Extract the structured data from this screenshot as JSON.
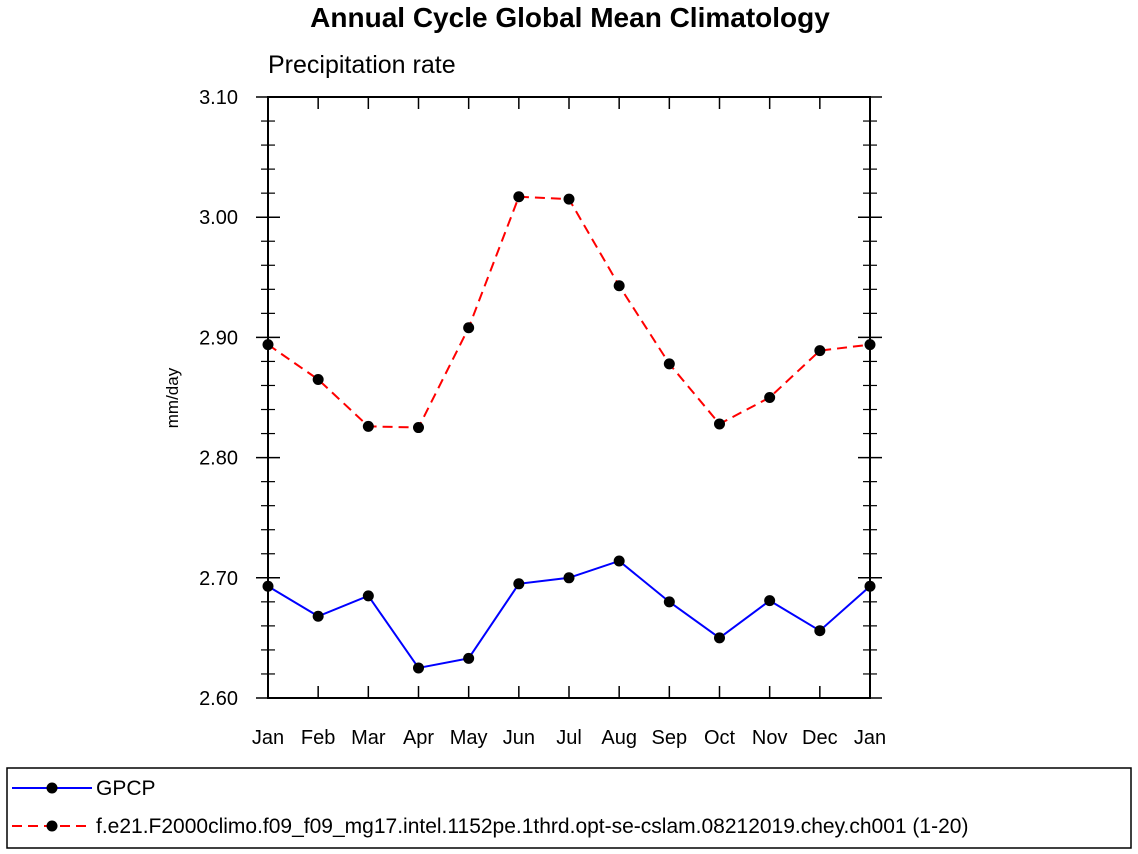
{
  "chart_data": {
    "type": "line",
    "title": "Annual Cycle Global Mean Climatology",
    "subtitle": "Precipitation rate",
    "ylabel": "mm/day",
    "ylim": [
      2.6,
      3.1
    ],
    "yticks": [
      "2.60",
      "2.70",
      "2.80",
      "2.90",
      "3.00",
      "3.10"
    ],
    "categories": [
      "Jan",
      "Feb",
      "Mar",
      "Apr",
      "May",
      "Jun",
      "Jul",
      "Aug",
      "Sep",
      "Oct",
      "Nov",
      "Dec",
      "Jan"
    ],
    "grid": false,
    "legend_placement": "bottom",
    "series": [
      {
        "name": "GPCP",
        "color": "#0000ff",
        "style": "solid",
        "marker": "filled-circle",
        "values": [
          2.693,
          2.668,
          2.685,
          2.625,
          2.633,
          2.695,
          2.7,
          2.714,
          2.68,
          2.65,
          2.681,
          2.656,
          2.693
        ]
      },
      {
        "name": "f.e21.F2000climo.f09_f09_mg17.intel.1152pe.1thrd.opt-se-cslam.08212019.chey.ch001 (1-20)",
        "color": "#ff0000",
        "style": "dashed",
        "marker": "filled-circle",
        "values": [
          2.894,
          2.865,
          2.826,
          2.825,
          2.908,
          3.017,
          3.015,
          2.943,
          2.878,
          2.828,
          2.85,
          2.889,
          2.894
        ]
      }
    ]
  }
}
